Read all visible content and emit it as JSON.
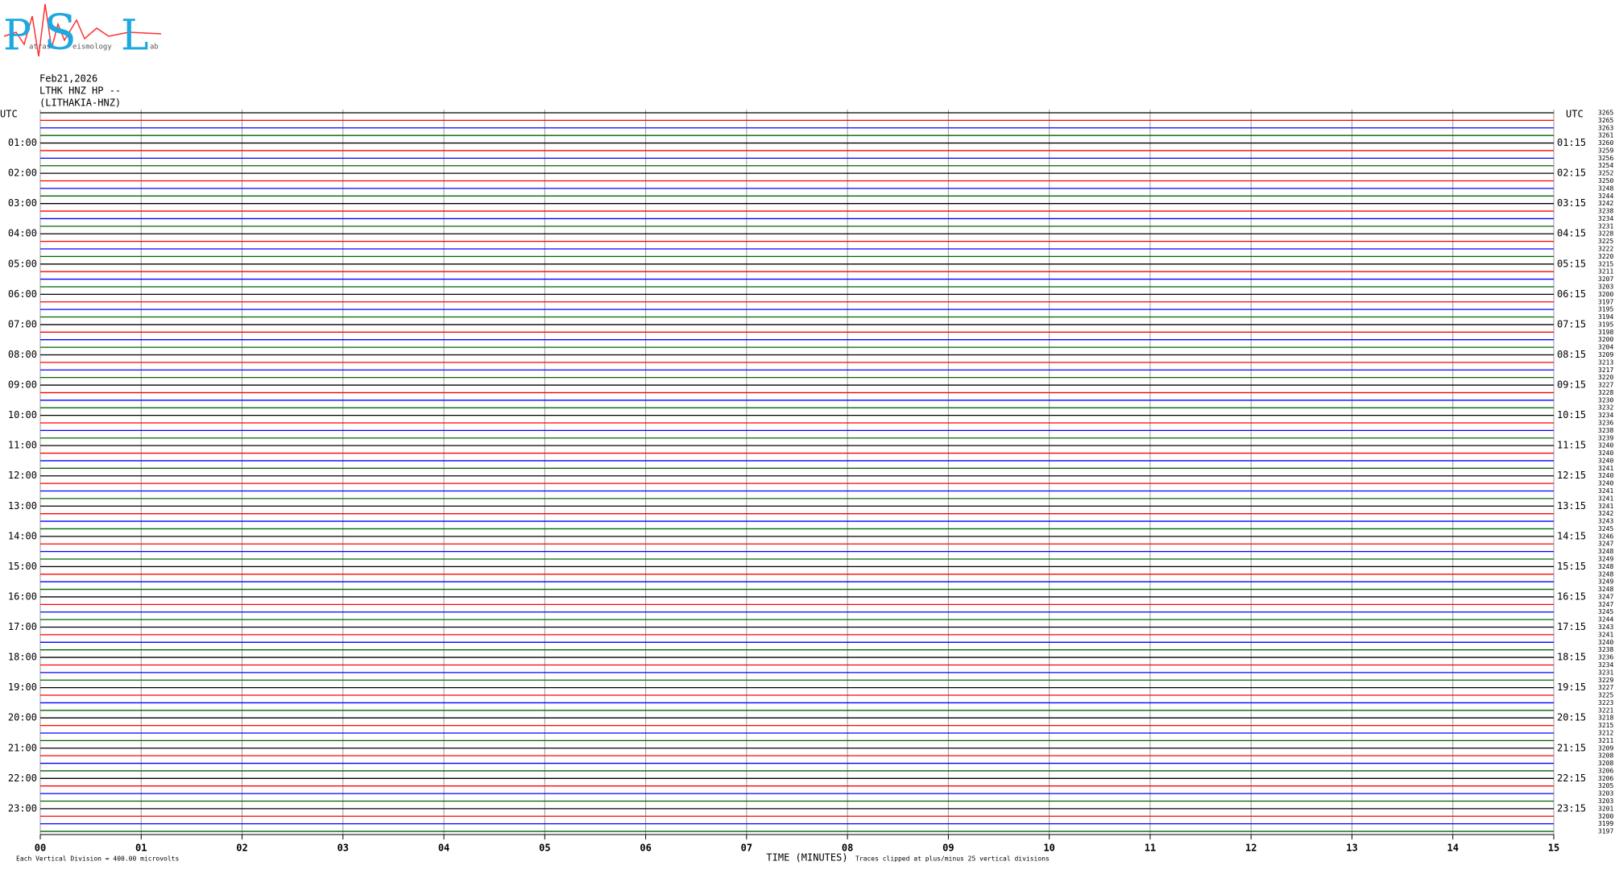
{
  "logo": {
    "letters": [
      "P",
      "S",
      "L"
    ],
    "words": [
      "atras",
      "eismology",
      "ab"
    ]
  },
  "header": {
    "date": "Feb21,2026",
    "station": "LTHK HNZ HP --",
    "site": "(LITHAKIA-HNZ)"
  },
  "trace_colors": [
    "#000000",
    "#ff0000",
    "#0000ff",
    "#006400"
  ],
  "utc_label": "UTC",
  "left_labels": [
    "01:00",
    "02:00",
    "03:00",
    "04:00",
    "05:00",
    "06:00",
    "07:00",
    "08:00",
    "09:00",
    "10:00",
    "11:00",
    "12:00",
    "13:00",
    "14:00",
    "15:00",
    "16:00",
    "17:00",
    "18:00",
    "19:00",
    "20:00",
    "21:00",
    "22:00",
    "23:00"
  ],
  "right_labels": [
    "01:15",
    "02:15",
    "03:15",
    "04:15",
    "05:15",
    "06:15",
    "07:15",
    "08:15",
    "09:15",
    "10:15",
    "11:15",
    "12:15",
    "13:15",
    "14:15",
    "15:15",
    "16:15",
    "17:15",
    "18:15",
    "19:15",
    "20:15",
    "21:15",
    "22:15",
    "23:15"
  ],
  "row_values": [
    "3265",
    "3265",
    "3263",
    "3261",
    "3260",
    "3259",
    "3256",
    "3254",
    "3252",
    "3250",
    "3248",
    "3244",
    "3242",
    "3238",
    "3234",
    "3231",
    "3228",
    "3225",
    "3222",
    "3220",
    "3215",
    "3211",
    "3207",
    "3203",
    "3200",
    "3197",
    "3195",
    "3194",
    "3195",
    "3198",
    "3200",
    "3204",
    "3209",
    "3213",
    "3217",
    "3220",
    "3227",
    "3228",
    "3230",
    "3232",
    "3234",
    "3236",
    "3238",
    "3239",
    "3240",
    "3240",
    "3240",
    "3241",
    "3240",
    "3240",
    "3241",
    "3241",
    "3241",
    "3242",
    "3243",
    "3245",
    "3246",
    "3247",
    "3248",
    "3249",
    "3248",
    "3248",
    "3249",
    "3248",
    "3247",
    "3247",
    "3245",
    "3244",
    "3243",
    "3241",
    "3240",
    "3238",
    "3236",
    "3234",
    "3231",
    "3229",
    "3227",
    "3225",
    "3223",
    "3221",
    "3218",
    "3215",
    "3212",
    "3211",
    "3209",
    "3208",
    "3208",
    "3206",
    "3206",
    "3205",
    "3203",
    "3203",
    "3201",
    "3200",
    "3199",
    "3197"
  ],
  "xticks": [
    "00",
    "01",
    "02",
    "03",
    "04",
    "05",
    "06",
    "07",
    "08",
    "09",
    "10",
    "11",
    "12",
    "13",
    "14",
    "15"
  ],
  "x_label": "TIME (MINUTES)",
  "footer": {
    "scale": "Each Vertical Division =  400.00 microvolts",
    "clip": "Traces clipped at plus/minus 25 vertical divisions"
  }
}
